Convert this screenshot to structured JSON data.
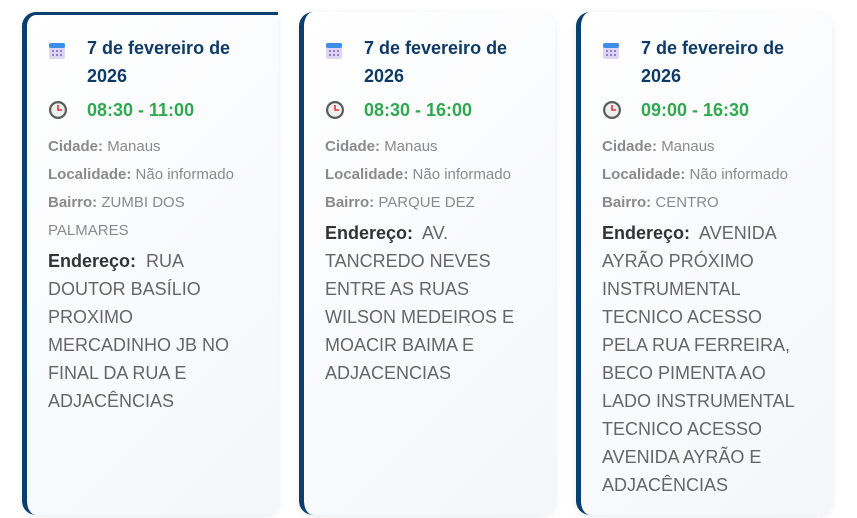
{
  "colors": {
    "accent": "#0b3f70",
    "date": "#0d3b66",
    "time": "#2fa84f"
  },
  "labels": {
    "city": "Cidade:",
    "locality": "Localidade:",
    "district": "Bairro:",
    "address": "Endereço:"
  },
  "cards": [
    {
      "date": "7 de fevereiro de 2026",
      "time": "08:30 - 11:00",
      "city": "Manaus",
      "locality": "Não informado",
      "district": "ZUMBI DOS PALMARES",
      "address": "RUA DOUTOR BASÍLIO PROXIMO MERCADINHO JB NO FINAL DA RUA E ADJACÊNCIAS"
    },
    {
      "date": "7 de fevereiro de 2026",
      "time": "08:30 - 16:00",
      "city": "Manaus",
      "locality": "Não informado",
      "district": "PARQUE DEZ",
      "address": "AV. TANCREDO NEVES ENTRE AS RUAS WILSON MEDEIROS E MOACIR BAIMA E ADJACENCIAS"
    },
    {
      "date": "7 de fevereiro de 2026",
      "time": "09:00 - 16:30",
      "city": "Manaus",
      "locality": "Não informado",
      "district": "CENTRO",
      "address": "AVENIDA AYRÃO PRÓXIMO INSTRUMENTAL TECNICO ACESSO PELA RUA FERREIRA, BECO PIMENTA AO LADO INSTRUMENTAL TECNICO ACESSO AVENIDA AYRÃO E ADJACÊNCIAS"
    }
  ],
  "icons": {
    "date": "calendar-icon",
    "time": "clock-icon"
  }
}
